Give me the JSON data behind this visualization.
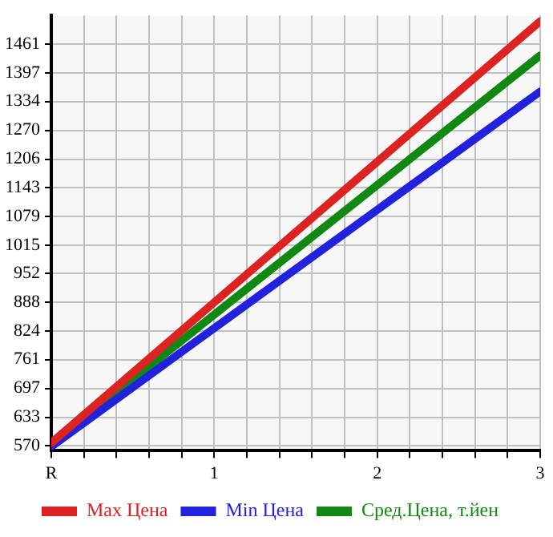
{
  "chart_data": {
    "type": "line",
    "x": [
      0,
      3
    ],
    "series": [
      {
        "name": "Max Цена",
        "color": "#dd2222",
        "values": [
          576,
          1512
        ]
      },
      {
        "name": "Min Цена",
        "color": "#2222dd",
        "values": [
          568,
          1356
        ]
      },
      {
        "name": "Сред.Цена, т.йен",
        "color": "#118811",
        "values": [
          573,
          1436
        ]
      }
    ],
    "xlim": [
      0,
      3
    ],
    "xticks": [
      {
        "value": 0,
        "label": "R"
      },
      {
        "value": 0.2,
        "label": null
      },
      {
        "value": 0.4,
        "label": null
      },
      {
        "value": 0.6,
        "label": null
      },
      {
        "value": 0.8,
        "label": null
      },
      1,
      {
        "value": 1.2,
        "label": null
      },
      {
        "value": 1.4,
        "label": null
      },
      {
        "value": 1.6,
        "label": null
      },
      {
        "value": 1.8,
        "label": null
      },
      2,
      {
        "value": 2.2,
        "label": null
      },
      {
        "value": 2.4,
        "label": null
      },
      {
        "value": 2.6,
        "label": null
      },
      {
        "value": 2.8,
        "label": null
      },
      3
    ],
    "ylim": [
      560,
      1525
    ],
    "yticks": [
      570,
      633,
      697,
      761,
      824,
      888,
      952,
      1015,
      1079,
      1143,
      1206,
      1270,
      1334,
      1397,
      1461
    ],
    "grid": true,
    "legend": "bottom",
    "marker": "none",
    "line_style": "solid"
  }
}
